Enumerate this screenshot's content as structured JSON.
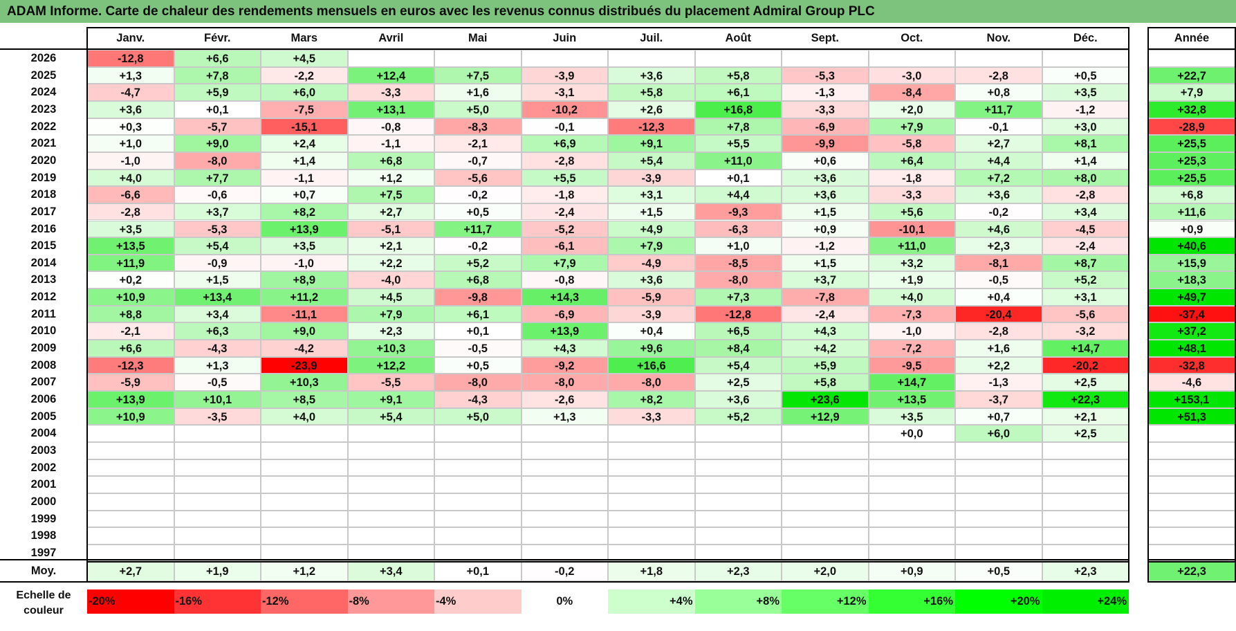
{
  "title": "ADAM Informe. Carte de chaleur des rendements mensuels en euros avec les revenus connus distribués du placement Admiral Group PLC",
  "chart_data": {
    "type": "heatmap",
    "title": "ADAM Informe. Carte de chaleur des rendements mensuels en euros avec les revenus connus distribués du placement Admiral Group PLC",
    "columns": [
      "Janv.",
      "Févr.",
      "Mars",
      "Avril",
      "Mai",
      "Juin",
      "Juil.",
      "Août",
      "Sept.",
      "Oct.",
      "Nov.",
      "Déc."
    ],
    "year_header": "Année",
    "rows": [
      {
        "year": "2026",
        "months": [
          "-12,8",
          "+6,6",
          "+4,5",
          "",
          "",
          "",
          "",
          "",
          "",
          "",
          "",
          ""
        ],
        "annual": ""
      },
      {
        "year": "2025",
        "months": [
          "+1,3",
          "+7,8",
          "-2,2",
          "+12,4",
          "+7,5",
          "-3,9",
          "+3,6",
          "+5,8",
          "-5,3",
          "-3,0",
          "-2,8",
          "+0,5"
        ],
        "annual": "+22,7"
      },
      {
        "year": "2024",
        "months": [
          "-4,7",
          "+5,9",
          "+6,0",
          "-3,3",
          "+1,6",
          "-3,1",
          "+5,8",
          "+6,1",
          "-1,3",
          "-8,4",
          "+0,8",
          "+3,5"
        ],
        "annual": "+7,9"
      },
      {
        "year": "2023",
        "months": [
          "+3,6",
          "+0,1",
          "-7,5",
          "+13,1",
          "+5,0",
          "-10,2",
          "+2,6",
          "+16,8",
          "-3,3",
          "+2,0",
          "+11,7",
          "-1,2"
        ],
        "annual": "+32,8"
      },
      {
        "year": "2022",
        "months": [
          "+0,3",
          "-5,7",
          "-15,1",
          "-0,8",
          "-8,3",
          "-0,1",
          "-12,3",
          "+7,8",
          "-6,9",
          "+7,9",
          "-0,1",
          "+3,0"
        ],
        "annual": "-28,9"
      },
      {
        "year": "2021",
        "months": [
          "+1,0",
          "+9,0",
          "+2,4",
          "-1,1",
          "-2,1",
          "+6,9",
          "+9,1",
          "+5,5",
          "-9,9",
          "-5,8",
          "+2,7",
          "+8,1"
        ],
        "annual": "+25,5"
      },
      {
        "year": "2020",
        "months": [
          "-1,0",
          "-8,0",
          "+1,4",
          "+6,8",
          "-0,7",
          "-2,8",
          "+5,4",
          "+11,0",
          "+0,6",
          "+6,4",
          "+4,4",
          "+1,4"
        ],
        "annual": "+25,3"
      },
      {
        "year": "2019",
        "months": [
          "+4,0",
          "+7,7",
          "-1,1",
          "+1,2",
          "-5,6",
          "+5,5",
          "-3,9",
          "+0,1",
          "+3,6",
          "-1,8",
          "+7,2",
          "+8,0"
        ],
        "annual": "+25,5"
      },
      {
        "year": "2018",
        "months": [
          "-6,6",
          "-0,6",
          "+0,7",
          "+7,5",
          "-0,2",
          "-1,8",
          "+3,1",
          "+4,4",
          "+3,6",
          "-3,3",
          "+3,6",
          "-2,8"
        ],
        "annual": "+6,8"
      },
      {
        "year": "2017",
        "months": [
          "-2,8",
          "+3,7",
          "+8,2",
          "+2,7",
          "+0,5",
          "-2,4",
          "+1,5",
          "-9,3",
          "+1,5",
          "+5,6",
          "-0,2",
          "+3,4"
        ],
        "annual": "+11,6"
      },
      {
        "year": "2016",
        "months": [
          "+3,5",
          "-5,3",
          "+13,9",
          "-5,1",
          "+11,7",
          "-5,2",
          "+4,9",
          "-6,3",
          "+0,9",
          "-10,1",
          "+4,6",
          "-4,5"
        ],
        "annual": "+0,9"
      },
      {
        "year": "2015",
        "months": [
          "+13,5",
          "+5,4",
          "+3,5",
          "+2,1",
          "-0,2",
          "-6,1",
          "+7,9",
          "+1,0",
          "-1,2",
          "+11,0",
          "+2,3",
          "-2,4"
        ],
        "annual": "+40,6"
      },
      {
        "year": "2014",
        "months": [
          "+11,9",
          "-0,9",
          "-1,0",
          "+2,2",
          "+5,2",
          "+7,9",
          "-4,9",
          "-8,5",
          "+1,5",
          "+3,2",
          "-8,1",
          "+8,7"
        ],
        "annual": "+15,9"
      },
      {
        "year": "2013",
        "months": [
          "+0,2",
          "+1,5",
          "+8,9",
          "-4,0",
          "+6,8",
          "-0,8",
          "+3,6",
          "-8,0",
          "+3,7",
          "+1,9",
          "-0,5",
          "+5,2"
        ],
        "annual": "+18,3"
      },
      {
        "year": "2012",
        "months": [
          "+10,9",
          "+13,4",
          "+11,2",
          "+4,5",
          "-9,8",
          "+14,3",
          "-5,9",
          "+7,3",
          "-7,8",
          "+4,0",
          "+0,4",
          "+3,1"
        ],
        "annual": "+49,7"
      },
      {
        "year": "2011",
        "months": [
          "+8,8",
          "+3,4",
          "-11,1",
          "+7,9",
          "+6,1",
          "-6,9",
          "-3,9",
          "-12,8",
          "-2,4",
          "-7,3",
          "-20,4",
          "-5,6"
        ],
        "annual": "-37,4"
      },
      {
        "year": "2010",
        "months": [
          "-2,1",
          "+6,3",
          "+9,0",
          "+2,3",
          "+0,1",
          "+13,9",
          "+0,4",
          "+6,5",
          "+4,3",
          "-1,0",
          "-2,8",
          "-3,2"
        ],
        "annual": "+37,2"
      },
      {
        "year": "2009",
        "months": [
          "+6,6",
          "-4,3",
          "-4,2",
          "+10,3",
          "-0,5",
          "+4,3",
          "+9,6",
          "+8,4",
          "+4,2",
          "-7,2",
          "+1,6",
          "+14,7"
        ],
        "annual": "+48,1"
      },
      {
        "year": "2008",
        "months": [
          "-12,3",
          "+1,3",
          "-23,9",
          "+12,2",
          "+0,5",
          "-9,2",
          "+16,6",
          "+5,4",
          "+5,9",
          "-9,5",
          "+2,2",
          "-20,2"
        ],
        "annual": "-32,8"
      },
      {
        "year": "2007",
        "months": [
          "-5,9",
          "-0,5",
          "+10,3",
          "-5,5",
          "-8,0",
          "-8,0",
          "-8,0",
          "+2,5",
          "+5,8",
          "+14,7",
          "-1,3",
          "+2,5"
        ],
        "annual": "-4,6"
      },
      {
        "year": "2006",
        "months": [
          "+13,9",
          "+10,1",
          "+8,5",
          "+9,1",
          "-4,3",
          "-2,6",
          "+8,2",
          "+3,6",
          "+23,6",
          "+13,5",
          "-3,7",
          "+22,3"
        ],
        "annual": "+153,1"
      },
      {
        "year": "2005",
        "months": [
          "+10,9",
          "-3,5",
          "+4,0",
          "+5,4",
          "+5,0",
          "+1,3",
          "-3,3",
          "+5,2",
          "+12,9",
          "+3,5",
          "+0,7",
          "+2,1"
        ],
        "annual": "+51,3"
      },
      {
        "year": "2004",
        "months": [
          "",
          "",
          "",
          "",
          "",
          "",
          "",
          "",
          "",
          "+0,0",
          "+6,0",
          "+2,5"
        ],
        "annual": ""
      },
      {
        "year": "2003",
        "months": [
          "",
          "",
          "",
          "",
          "",
          "",
          "",
          "",
          "",
          "",
          "",
          ""
        ],
        "annual": ""
      },
      {
        "year": "2002",
        "months": [
          "",
          "",
          "",
          "",
          "",
          "",
          "",
          "",
          "",
          "",
          "",
          ""
        ],
        "annual": ""
      },
      {
        "year": "2001",
        "months": [
          "",
          "",
          "",
          "",
          "",
          "",
          "",
          "",
          "",
          "",
          "",
          ""
        ],
        "annual": ""
      },
      {
        "year": "2000",
        "months": [
          "",
          "",
          "",
          "",
          "",
          "",
          "",
          "",
          "",
          "",
          "",
          ""
        ],
        "annual": ""
      },
      {
        "year": "1999",
        "months": [
          "",
          "",
          "",
          "",
          "",
          "",
          "",
          "",
          "",
          "",
          "",
          ""
        ],
        "annual": ""
      },
      {
        "year": "1998",
        "months": [
          "",
          "",
          "",
          "",
          "",
          "",
          "",
          "",
          "",
          "",
          "",
          ""
        ],
        "annual": ""
      },
      {
        "year": "1997",
        "months": [
          "",
          "",
          "",
          "",
          "",
          "",
          "",
          "",
          "",
          "",
          "",
          ""
        ],
        "annual": ""
      }
    ],
    "average": {
      "label": "Moy.",
      "months": [
        "+2,7",
        "+1,9",
        "+1,2",
        "+3,4",
        "+0,1",
        "-0,2",
        "+1,8",
        "+2,3",
        "+2,0",
        "+0,9",
        "+0,5",
        "+2,3"
      ],
      "annual": "+22,3"
    },
    "scale": {
      "label": "Echelle de couleur",
      "steps": [
        "-20%",
        "-16%",
        "-12%",
        "-8%",
        "-4%",
        "0%",
        "+4%",
        "+8%",
        "+12%",
        "+16%",
        "+20%",
        "+24%"
      ],
      "colors": [
        "#ff0000",
        "#ff3333",
        "#ff6666",
        "#ff9999",
        "#ffcccc",
        "#ffffff",
        "#ccffcc",
        "#99ff99",
        "#66ff66",
        "#33ff33",
        "#00ff00",
        "#00ee00"
      ]
    },
    "colors": {
      "negative_max": "#ff0000",
      "neutral": "#ffffff",
      "positive_max": "#00e600"
    }
  }
}
